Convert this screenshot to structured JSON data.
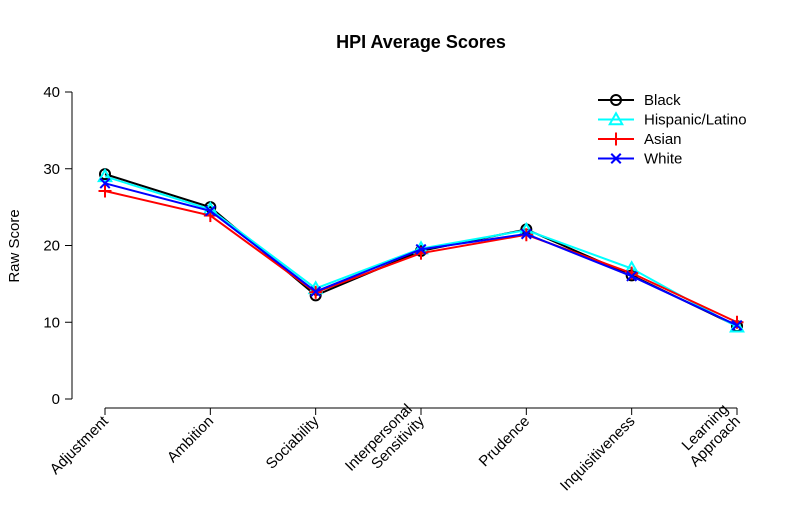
{
  "chart_data": {
    "type": "line",
    "title": "HPI Average Scores",
    "xlabel": "",
    "ylabel": "Raw Score",
    "ylim": [
      0,
      40
    ],
    "yticks": [
      0,
      10,
      20,
      30,
      40
    ],
    "grid": false,
    "legend_position": "top-right",
    "categories": [
      [
        "Adjustment"
      ],
      [
        "Ambition"
      ],
      [
        "Sociability"
      ],
      [
        "Interpersonal",
        "Sensitivity"
      ],
      [
        "Prudence"
      ],
      [
        "Inquisitiveness"
      ],
      [
        "Learning",
        "Approach"
      ]
    ],
    "series": [
      {
        "name": "Black",
        "color": "#000000",
        "marker": "circle",
        "values": [
          29.3,
          25.0,
          13.5,
          19.3,
          22.1,
          16.1,
          9.5
        ]
      },
      {
        "name": "Hispanic/Latino",
        "color": "#00FFFF",
        "marker": "triangle",
        "values": [
          29.0,
          24.7,
          14.4,
          19.6,
          22.0,
          17.0,
          9.4
        ]
      },
      {
        "name": "Asian",
        "color": "#FF0000",
        "marker": "plus",
        "values": [
          27.1,
          23.9,
          13.9,
          19.0,
          21.4,
          16.4,
          10.0
        ]
      },
      {
        "name": "White",
        "color": "#0000FF",
        "marker": "x",
        "values": [
          28.1,
          24.5,
          14.0,
          19.5,
          21.5,
          16.0,
          9.6
        ]
      }
    ]
  }
}
